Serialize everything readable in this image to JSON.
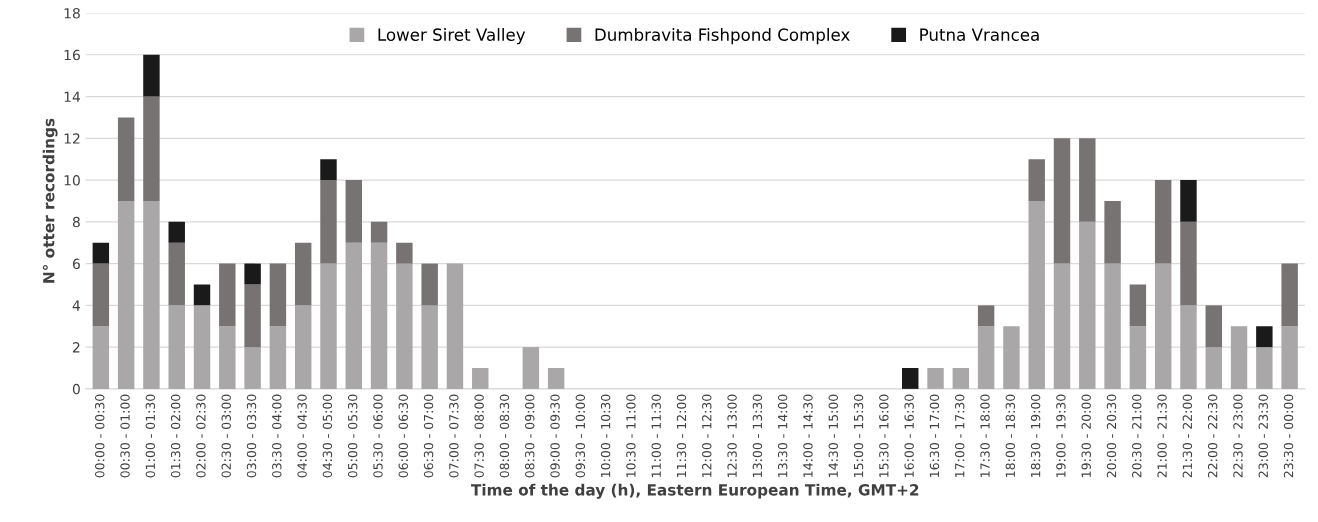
{
  "chart_data": {
    "type": "bar",
    "stacked": true,
    "xlabel": "Time of the day (h), Eastern European Time, GMT+2",
    "ylabel": "N° otter recordings",
    "categories": [
      "00:00 - 00:30",
      "00:30 - 01:00",
      "01:00 - 01:30",
      "01:30 - 02:00",
      "02:00 - 02:30",
      "02:30 - 03:00",
      "03:00 - 03:30",
      "03:30 - 04:00",
      "04:00 - 04:30",
      "04:30 - 05:00",
      "05:00 - 05:30",
      "05:30 - 06:00",
      "06:00 - 06:30",
      "06:30 - 07:00",
      "07:00 - 07:30",
      "07:30 - 08:00",
      "08:00 - 08:30",
      "08:30 - 09:00",
      "09:00 - 09:30",
      "09:30 - 10:00",
      "10:00 - 10:30",
      "10:30 - 11:00",
      "11:00 - 11:30",
      "11:30 - 12:00",
      "12:00 - 12:30",
      "12:30 - 13:00",
      "13:00 - 13:30",
      "13:30 - 14:00",
      "14:00 - 14:30",
      "14:30 - 15:00",
      "15:00 - 15:30",
      "15:30 - 16:00",
      "16:00 - 16:30",
      "16:30 - 17:00",
      "17:00 - 17:30",
      "17:30 - 18:00",
      "18:00 - 18:30",
      "18:30 - 19:00",
      "19:00 - 19:30",
      "19:30 - 20:00",
      "20:00 - 20:30",
      "20:30 - 21:00",
      "21:00 - 21:30",
      "21:30 - 22:00",
      "22:00 - 22:30",
      "22:30 - 23:00",
      "23:00 - 23:30",
      "23:30 - 00:00"
    ],
    "series": [
      {
        "name": "Lower Siret Valley",
        "color": "#a9a7a7",
        "values": [
          3,
          9,
          9,
          4,
          4,
          3,
          2,
          3,
          4,
          6,
          7,
          7,
          6,
          4,
          6,
          1,
          0,
          2,
          1,
          0,
          0,
          0,
          0,
          0,
          0,
          0,
          0,
          0,
          0,
          0,
          0,
          0,
          0,
          1,
          1,
          3,
          3,
          9,
          6,
          8,
          6,
          3,
          6,
          4,
          2,
          3,
          2,
          3
        ]
      },
      {
        "name": "Dumbravita Fishpond Complex",
        "color": "#787373",
        "values": [
          3,
          4,
          5,
          3,
          0,
          3,
          3,
          3,
          3,
          4,
          3,
          1,
          1,
          2,
          0,
          0,
          0,
          0,
          0,
          0,
          0,
          0,
          0,
          0,
          0,
          0,
          0,
          0,
          0,
          0,
          0,
          0,
          0,
          0,
          0,
          1,
          0,
          2,
          6,
          4,
          3,
          2,
          4,
          4,
          2,
          0,
          0,
          3
        ]
      },
      {
        "name": "Putna Vrancea",
        "color": "#1a1a1a",
        "values": [
          1,
          0,
          2,
          1,
          1,
          0,
          1,
          0,
          0,
          1,
          0,
          0,
          0,
          0,
          0,
          0,
          0,
          0,
          0,
          0,
          0,
          0,
          0,
          0,
          0,
          0,
          0,
          0,
          0,
          0,
          0,
          0,
          1,
          0,
          0,
          0,
          0,
          0,
          0,
          0,
          0,
          0,
          0,
          2,
          0,
          0,
          1,
          0
        ]
      }
    ],
    "ylim": [
      0,
      18
    ],
    "yticks": [
      0,
      2,
      4,
      6,
      8,
      10,
      12,
      14,
      16,
      18
    ],
    "grid": "y",
    "legend": "top"
  }
}
